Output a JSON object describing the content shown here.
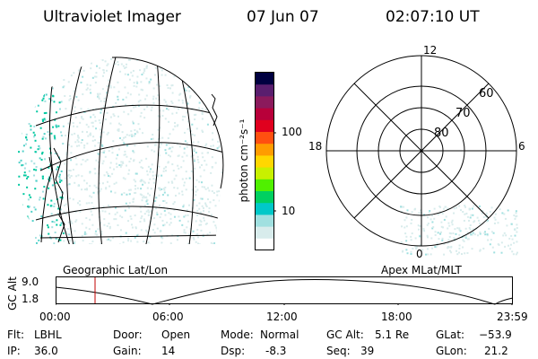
{
  "header": {
    "title": "Ultraviolet Imager",
    "date": "07 Jun 07",
    "time": "02:07:10 UT"
  },
  "colorbar": {
    "label": "photon cm⁻²s⁻¹",
    "ticks": [
      "100",
      "10"
    ],
    "colors": [
      "#000040",
      "#5a1e6e",
      "#8b1a5c",
      "#b8003a",
      "#e0001e",
      "#ff5010",
      "#ff9c00",
      "#ffd700",
      "#c8f000",
      "#50f000",
      "#00d060",
      "#00c8c8",
      "#a0e0e0",
      "#d8ecec",
      "#ffffff"
    ]
  },
  "polar_plot": {
    "labels": {
      "top": "12",
      "left": "18",
      "right": "6",
      "bottom": "0"
    },
    "lat_labels": [
      "60",
      "70",
      "80"
    ]
  },
  "map_labels": {
    "left": "Geographic Lat/Lon",
    "right": "Apex MLat/MLT"
  },
  "altitude_strip": {
    "axis_label": "GC Alt",
    "y_ticks": [
      "9.0",
      "1.8"
    ],
    "x_ticks": [
      "00:00",
      "06:00",
      "12:00",
      "18:00",
      "23:59"
    ],
    "marker_color": "#c00000"
  },
  "status": {
    "row1": {
      "flt_label": "Flt:",
      "flt_value": "LBHL",
      "door_label": "Door:",
      "door_value": "Open",
      "mode_label": "Mode:",
      "mode_value": "Normal",
      "gcalt_label": "GC Alt:",
      "gcalt_value": "5.1 Re",
      "glat_label": "GLat:",
      "glat_value": "−53.9"
    },
    "row2": {
      "ip_label": "IP:",
      "ip_value": "36.0",
      "gain_label": "Gain:",
      "gain_value": "14",
      "dsp_label": "Dsp:",
      "dsp_value": "-8.3",
      "seq_label": "Seq:",
      "seq_value": "39",
      "glon_label": "GLon:",
      "glon_value": "21.2"
    }
  }
}
